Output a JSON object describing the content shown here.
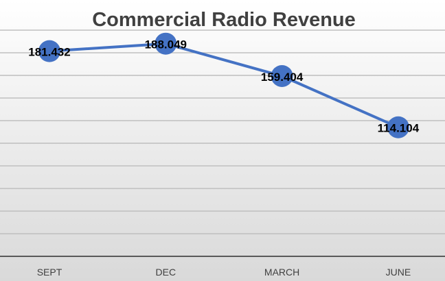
{
  "colors": {
    "background_top": "#ffffff",
    "background_bottom": "#d9d9d9",
    "title": "#404040",
    "line": "#4472c4",
    "gridline": "#bfbfbf",
    "axis": "#595959",
    "labels": "#000000",
    "tick_text": "#404040"
  },
  "chart_data": {
    "type": "line",
    "title": "Commercial Radio Revenue",
    "categories": [
      "SEPT",
      "DEC",
      "MARCH",
      "JUNE"
    ],
    "values": [
      181.432,
      188.049,
      159.404,
      114.104
    ],
    "data_labels": [
      "181.432",
      "188.049",
      "159.404",
      "114.104"
    ],
    "ylim": [
      0,
      200
    ],
    "grid": true,
    "legend": "none"
  }
}
